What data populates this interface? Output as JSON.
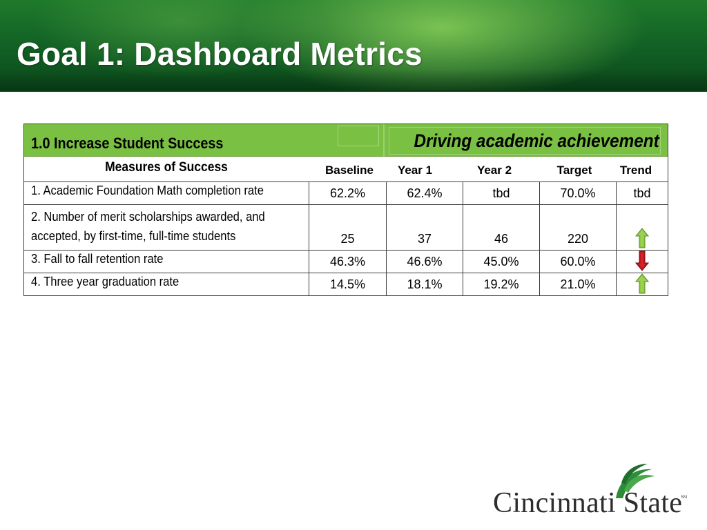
{
  "slide": {
    "title": "Goal 1: Dashboard Metrics"
  },
  "goal": {
    "label": "1.0 Increase Student Success",
    "tagline": "Driving academic achievement",
    "bar_color": "#7ac143"
  },
  "table": {
    "headers": {
      "measures": "Measures of Success",
      "baseline": "Baseline",
      "year1": "Year 1",
      "year2": "Year 2",
      "target": "Target",
      "trend": "Trend"
    },
    "rows": [
      {
        "measure_lines": [
          "1. Academic Foundation Math completion rate"
        ],
        "baseline": "62.2%",
        "year1": "62.4%",
        "year2": "tbd",
        "target": "70.0%",
        "trend_text": "tbd",
        "trend": "none"
      },
      {
        "measure_lines": [
          "2. Number of merit scholarships awarded, and",
          "accepted, by first-time, full-time students"
        ],
        "baseline": "25",
        "year1": "37",
        "year2": "46",
        "target": "220",
        "trend": "up",
        "trend_icon": "green-up-arrow-icon"
      },
      {
        "measure_lines": [
          "3. Fall to fall retention rate"
        ],
        "baseline": "46.3%",
        "year1": "46.6%",
        "year2": "45.0%",
        "target": "60.0%",
        "trend": "down",
        "trend_icon": "red-down-arrow-icon"
      },
      {
        "measure_lines": [
          "4. Three year graduation rate"
        ],
        "baseline": "14.5%",
        "year1": "18.1%",
        "year2": "19.2%",
        "target": "21.0%",
        "trend": "up",
        "trend_icon": "green-up-arrow-icon"
      }
    ]
  },
  "colors": {
    "banner_green": "#136426",
    "up_arrow": "#7ac143",
    "down_arrow": "#c0141b"
  },
  "logo": {
    "name": "Cincinnati State",
    "mark": "SM"
  }
}
